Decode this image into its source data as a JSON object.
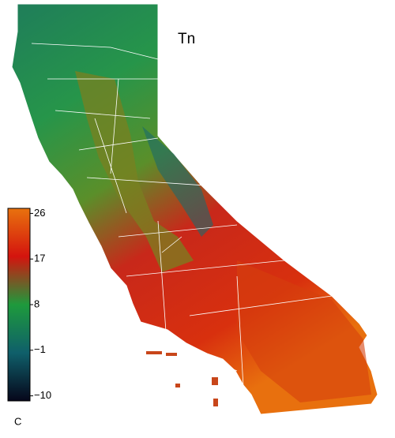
{
  "title": "Tn",
  "colorbar": {
    "unit": "C",
    "lim": [
      -11,
      27
    ],
    "ticks": [
      26,
      17,
      8,
      {
        "value": -1,
        "label": "−1"
      },
      {
        "value": -10,
        "label": "−10"
      }
    ],
    "colormap": [
      "#e8720e",
      "#d4140e",
      "#1e9a3c",
      "#0f5f6a",
      "#06061a"
    ]
  }
}
